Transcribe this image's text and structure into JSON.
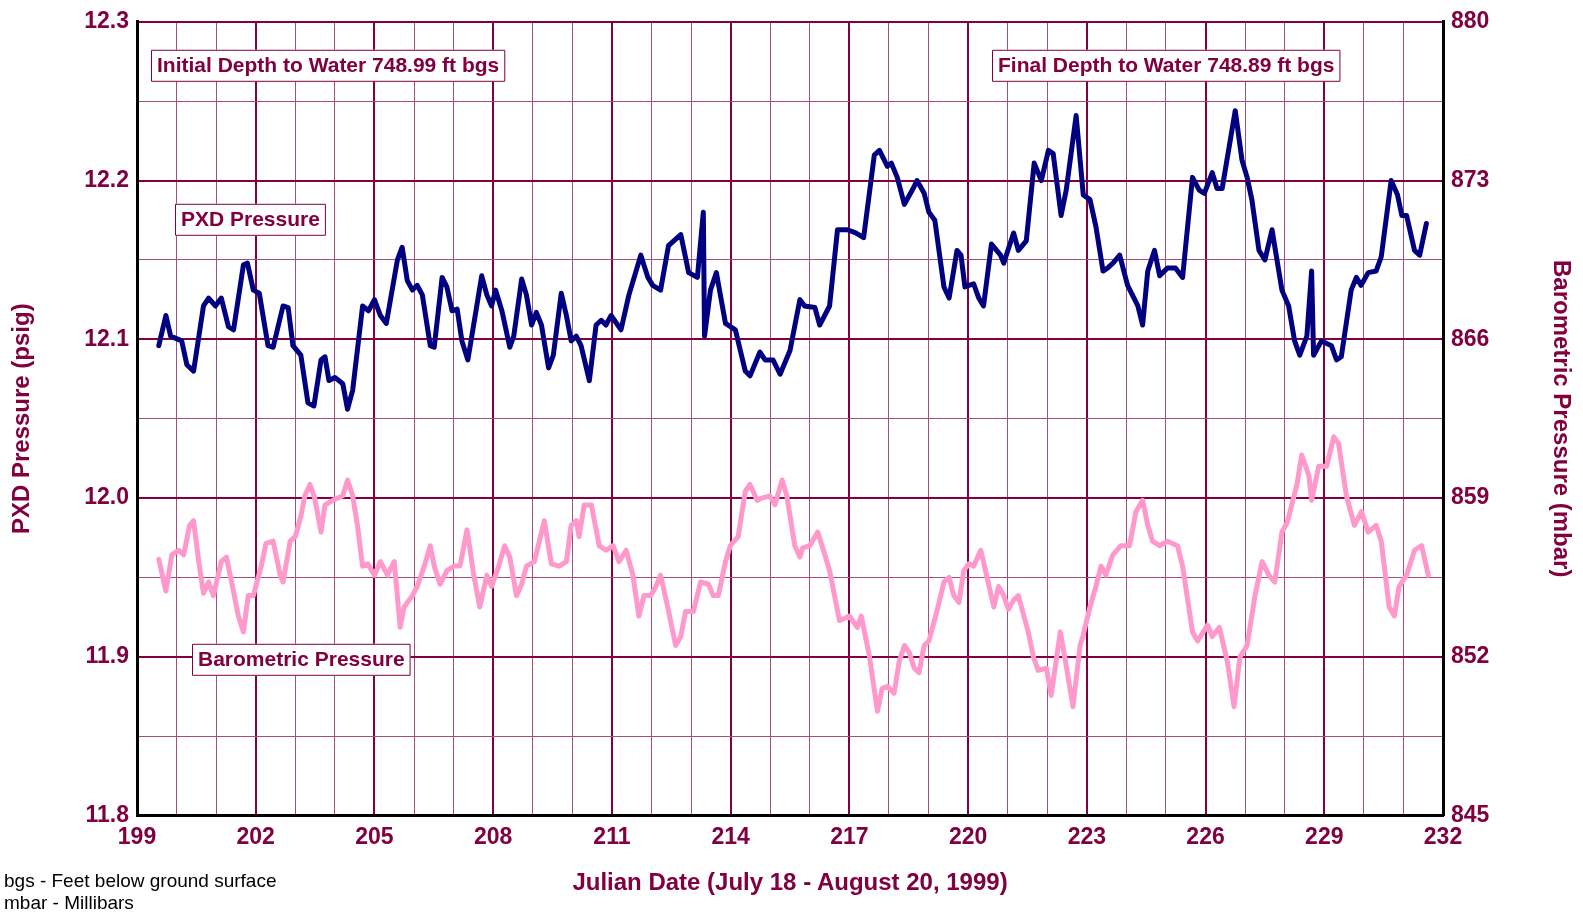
{
  "chart_data": {
    "type": "line",
    "xlabel": "Julian Date (July 18 - August 20, 1999)",
    "ylabel": "PXD Pressure (psig)",
    "y2label": "Barometric Pressure (mbar)",
    "xlim": [
      199,
      232
    ],
    "xticks": [
      199,
      {
        "value": 200,
        "label": null
      },
      {
        "value": 201,
        "label": null
      },
      202,
      {
        "value": 203,
        "label": null
      },
      {
        "value": 204,
        "label": null
      },
      205,
      {
        "value": 206,
        "label": null
      },
      {
        "value": 207,
        "label": null
      },
      208,
      {
        "value": 209,
        "label": null
      },
      {
        "value": 210,
        "label": null
      },
      211,
      {
        "value": 212,
        "label": null
      },
      {
        "value": 213,
        "label": null
      },
      214,
      {
        "value": 215,
        "label": null
      },
      {
        "value": 216,
        "label": null
      },
      217,
      {
        "value": 218,
        "label": null
      },
      {
        "value": 219,
        "label": null
      },
      220,
      {
        "value": 221,
        "label": null
      },
      {
        "value": 222,
        "label": null
      },
      223,
      {
        "value": 224,
        "label": null
      },
      {
        "value": 225,
        "label": null
      },
      226,
      {
        "value": 227,
        "label": null
      },
      {
        "value": 228,
        "label": null
      },
      229,
      {
        "value": 230,
        "label": null
      },
      {
        "value": 231,
        "label": null
      },
      232
    ],
    "ylim": [
      11.8,
      12.3
    ],
    "yticks": [
      11.8,
      {
        "value": 11.85,
        "label": null
      },
      11.9,
      {
        "value": 11.95,
        "label": null
      },
      {
        "value": 12,
        "label": "12.0"
      },
      {
        "value": 12.05,
        "label": null
      },
      12.1,
      {
        "value": 12.15,
        "label": null
      },
      12.2,
      {
        "value": 12.25,
        "label": null
      },
      12.3
    ],
    "y2lim": [
      845,
      880
    ],
    "y2ticks": [
      845,
      852,
      859,
      866,
      873,
      880
    ],
    "grid": true,
    "legend": false,
    "marker": "none",
    "line_style": "solid",
    "annotations": [
      "Initial Depth to Water 748.99 ft bgs",
      "Final Depth to Water 748.89 ft bgs",
      "bgs - Feet below ground surface",
      "mbar - Millibars"
    ],
    "series": [
      {
        "name": "PXD Pressure",
        "color": "#000080",
        "x": [
          199.55,
          199.73,
          199.85,
          200.13,
          200.26,
          200.43,
          200.68,
          200.81,
          200.98,
          201.13,
          201.31,
          201.44,
          201.69,
          201.79,
          201.94,
          202.09,
          202.31,
          202.44,
          202.69,
          202.82,
          202.94,
          203.14,
          203.32,
          203.47,
          203.65,
          203.75,
          203.85,
          204.0,
          204.2,
          204.32,
          204.45,
          204.7,
          204.85,
          205.0,
          205.15,
          205.3,
          205.58,
          205.7,
          205.83,
          205.96,
          206.08,
          206.21,
          206.41,
          206.51,
          206.71,
          206.83,
          206.96,
          207.09,
          207.21,
          207.36,
          207.46,
          207.71,
          207.84,
          207.96,
          208.06,
          208.22,
          208.42,
          208.52,
          208.72,
          208.84,
          208.97,
          209.09,
          209.22,
          209.4,
          209.52,
          209.72,
          209.85,
          209.97,
          210.1,
          210.22,
          210.43,
          210.6,
          210.73,
          210.85,
          210.98,
          211.23,
          211.43,
          211.73,
          211.91,
          212.03,
          212.23,
          212.43,
          212.74,
          212.94,
          213.16,
          213.31,
          213.34,
          213.49,
          213.64,
          213.74,
          213.87,
          214.12,
          214.37,
          214.49,
          214.74,
          214.87,
          215.07,
          215.25,
          215.5,
          215.75,
          215.87,
          216.13,
          216.25,
          216.5,
          216.7,
          216.95,
          217.16,
          217.36,
          217.63,
          217.76,
          217.96,
          218.06,
          218.21,
          218.39,
          218.59,
          218.71,
          218.89,
          219.01,
          219.16,
          219.39,
          219.52,
          219.72,
          219.82,
          219.92,
          220.14,
          220.27,
          220.39,
          220.59,
          220.82,
          220.9,
          221.15,
          221.27,
          221.47,
          221.67,
          221.85,
          222.03,
          222.15,
          222.35,
          222.48,
          222.73,
          222.91,
          223.08,
          223.23,
          223.41,
          223.53,
          223.66,
          223.83,
          224.03,
          224.29,
          224.41,
          224.54,
          224.71,
          224.84,
          225.04,
          225.24,
          225.42,
          225.67,
          225.84,
          225.97,
          226.17,
          226.29,
          226.42,
          226.75,
          226.92,
          227.05,
          227.17,
          227.35,
          227.5,
          227.68,
          227.93,
          228.1,
          228.25,
          228.38,
          228.56,
          228.68,
          228.73,
          228.93,
          229.18,
          229.31,
          229.43,
          229.68,
          229.81,
          229.93,
          230.11,
          230.31,
          230.44,
          230.69,
          230.85,
          230.96,
          231.08,
          231.28,
          231.41,
          231.58
        ],
        "values": [
          12.096,
          12.115,
          12.102,
          12.099,
          12.084,
          12.08,
          12.121,
          12.126,
          12.121,
          12.126,
          12.108,
          12.106,
          12.147,
          12.148,
          12.131,
          12.129,
          12.096,
          12.095,
          12.121,
          12.12,
          12.096,
          12.09,
          12.06,
          12.058,
          12.087,
          12.089,
          12.074,
          12.076,
          12.072,
          12.056,
          12.068,
          12.121,
          12.118,
          12.125,
          12.115,
          12.11,
          12.15,
          12.158,
          12.137,
          12.131,
          12.134,
          12.128,
          12.096,
          12.095,
          12.139,
          12.133,
          12.118,
          12.119,
          12.099,
          12.087,
          12.102,
          12.14,
          12.128,
          12.121,
          12.131,
          12.118,
          12.095,
          12.102,
          12.138,
          12.128,
          12.109,
          12.117,
          12.109,
          12.082,
          12.09,
          12.129,
          12.115,
          12.099,
          12.102,
          12.096,
          12.074,
          12.109,
          12.112,
          12.109,
          12.115,
          12.106,
          12.128,
          12.153,
          12.139,
          12.134,
          12.131,
          12.159,
          12.166,
          12.142,
          12.139,
          12.18,
          12.102,
          12.131,
          12.142,
          12.128,
          12.11,
          12.106,
          12.08,
          12.077,
          12.092,
          12.087,
          12.087,
          12.078,
          12.093,
          12.125,
          12.121,
          12.12,
          12.109,
          12.121,
          12.169,
          12.169,
          12.167,
          12.164,
          12.216,
          12.219,
          12.209,
          12.211,
          12.202,
          12.185,
          12.194,
          12.2,
          12.192,
          12.18,
          12.175,
          12.133,
          12.126,
          12.156,
          12.153,
          12.133,
          12.135,
          12.126,
          12.121,
          12.16,
          12.153,
          12.148,
          12.167,
          12.156,
          12.162,
          12.211,
          12.2,
          12.219,
          12.217,
          12.178,
          12.194,
          12.241,
          12.191,
          12.188,
          12.171,
          12.143,
          12.145,
          12.148,
          12.153,
          12.134,
          12.121,
          12.109,
          12.143,
          12.156,
          12.14,
          12.145,
          12.145,
          12.139,
          12.202,
          12.194,
          12.192,
          12.205,
          12.195,
          12.195,
          12.244,
          12.213,
          12.202,
          12.188,
          12.156,
          12.15,
          12.169,
          12.131,
          12.121,
          12.099,
          12.09,
          12.102,
          12.143,
          12.09,
          12.099,
          12.096,
          12.087,
          12.089,
          12.131,
          12.139,
          12.134,
          12.142,
          12.143,
          12.152,
          12.2,
          12.191,
          12.178,
          12.178,
          12.156,
          12.153,
          12.173
        ]
      },
      {
        "name": "Barometric Pressure",
        "color": "#ff99cc",
        "axis": "y2",
        "x": [
          199.55,
          199.73,
          199.88,
          200.05,
          200.18,
          200.33,
          200.43,
          200.56,
          200.68,
          200.81,
          200.93,
          201.13,
          201.26,
          201.39,
          201.56,
          201.69,
          201.81,
          201.94,
          202.14,
          202.26,
          202.44,
          202.62,
          202.69,
          202.87,
          203.0,
          203.14,
          203.24,
          203.37,
          203.49,
          203.65,
          203.75,
          203.95,
          204.2,
          204.32,
          204.45,
          204.57,
          204.7,
          204.83,
          205.0,
          205.15,
          205.33,
          205.5,
          205.65,
          205.75,
          205.96,
          206.08,
          206.26,
          206.41,
          206.51,
          206.66,
          206.83,
          207.01,
          207.16,
          207.34,
          207.51,
          207.66,
          207.84,
          207.96,
          208.14,
          208.29,
          208.42,
          208.59,
          208.72,
          208.84,
          209.04,
          209.14,
          209.29,
          209.47,
          209.67,
          209.85,
          209.97,
          210.1,
          210.17,
          210.3,
          210.48,
          210.68,
          210.85,
          211.03,
          211.18,
          211.36,
          211.53,
          211.68,
          211.81,
          211.98,
          212.11,
          212.23,
          212.41,
          212.61,
          212.74,
          212.86,
          213.06,
          213.24,
          213.44,
          213.56,
          213.69,
          213.87,
          213.99,
          214.19,
          214.37,
          214.49,
          214.67,
          214.79,
          214.99,
          215.12,
          215.3,
          215.42,
          215.62,
          215.75,
          215.82,
          216.0,
          216.2,
          216.38,
          216.5,
          216.75,
          216.88,
          217.0,
          217.2,
          217.3,
          217.51,
          217.71,
          217.83,
          217.96,
          218.13,
          218.26,
          218.39,
          218.51,
          218.64,
          218.76,
          218.89,
          219.01,
          219.21,
          219.39,
          219.52,
          219.64,
          219.77,
          219.89,
          220.02,
          220.14,
          220.32,
          220.44,
          220.65,
          220.77,
          220.9,
          221.02,
          221.15,
          221.27,
          221.52,
          221.65,
          221.77,
          221.98,
          222.1,
          222.33,
          222.48,
          222.65,
          222.83,
          222.9,
          223.08,
          223.23,
          223.36,
          223.48,
          223.66,
          223.86,
          224.08,
          224.24,
          224.41,
          224.54,
          224.66,
          224.84,
          225.04,
          225.29,
          225.42,
          225.67,
          225.8,
          226.05,
          226.17,
          226.35,
          226.55,
          226.72,
          226.87,
          227.05,
          227.25,
          227.43,
          227.6,
          227.75,
          227.93,
          228.06,
          228.31,
          228.43,
          228.61,
          228.68,
          228.86,
          229.06,
          229.24,
          229.36,
          229.56,
          229.76,
          229.94,
          230.11,
          230.31,
          230.44,
          230.64,
          230.77,
          230.89,
          231.08,
          231.28,
          231.46,
          231.63
        ],
        "values": [
          856.3,
          854.9,
          856.5,
          856.7,
          856.5,
          857.8,
          858.0,
          856.2,
          854.8,
          855.3,
          854.7,
          856.2,
          856.4,
          855.3,
          853.8,
          853.1,
          854.7,
          854.7,
          856.0,
          857.0,
          857.1,
          855.6,
          855.3,
          857.1,
          857.3,
          858.2,
          859.1,
          859.6,
          859.0,
          857.5,
          858.7,
          858.9,
          859.1,
          859.8,
          859.1,
          857.8,
          856.0,
          856.1,
          855.6,
          856.2,
          855.6,
          856.2,
          853.3,
          854.2,
          854.7,
          855.1,
          856.0,
          856.9,
          856.0,
          855.2,
          855.8,
          856.0,
          856.0,
          857.6,
          855.6,
          854.2,
          855.6,
          855.1,
          856.0,
          856.9,
          856.4,
          854.7,
          855.2,
          856.0,
          856.2,
          856.9,
          858.0,
          856.1,
          856.0,
          856.2,
          857.8,
          858.0,
          857.3,
          858.7,
          858.7,
          856.9,
          856.7,
          856.9,
          856.2,
          856.7,
          855.6,
          853.8,
          854.7,
          854.7,
          855.1,
          855.6,
          854.2,
          852.5,
          852.9,
          854.0,
          854.0,
          855.3,
          855.2,
          854.7,
          854.7,
          856.2,
          856.9,
          857.3,
          859.3,
          859.6,
          858.9,
          859.0,
          859.1,
          858.7,
          859.8,
          859.1,
          856.9,
          856.4,
          856.8,
          856.9,
          857.5,
          856.5,
          855.8,
          853.6,
          853.7,
          853.8,
          853.3,
          853.8,
          852.0,
          849.6,
          850.6,
          850.7,
          850.4,
          851.8,
          852.5,
          852.2,
          851.5,
          851.3,
          852.5,
          852.7,
          854.0,
          855.3,
          855.5,
          854.7,
          854.4,
          855.8,
          856.1,
          856.0,
          856.7,
          855.8,
          854.2,
          855.1,
          854.7,
          854.1,
          854.5,
          854.7,
          853.1,
          852.0,
          851.4,
          851.5,
          850.3,
          853.1,
          851.6,
          849.8,
          852.5,
          852.9,
          854.2,
          855.1,
          856.0,
          855.6,
          856.5,
          856.9,
          856.9,
          858.4,
          858.9,
          857.8,
          857.1,
          856.9,
          857.1,
          856.9,
          856.0,
          853.1,
          852.7,
          853.4,
          852.9,
          853.3,
          851.8,
          849.8,
          852.0,
          852.5,
          854.7,
          856.2,
          855.6,
          855.3,
          857.5,
          857.9,
          859.6,
          860.9,
          860.0,
          858.9,
          860.4,
          860.4,
          861.7,
          861.4,
          859.1,
          857.8,
          858.4,
          857.5,
          857.8,
          857.1,
          854.2,
          853.8,
          855.1,
          855.6,
          856.7,
          856.9,
          855.6
        ]
      }
    ]
  }
}
